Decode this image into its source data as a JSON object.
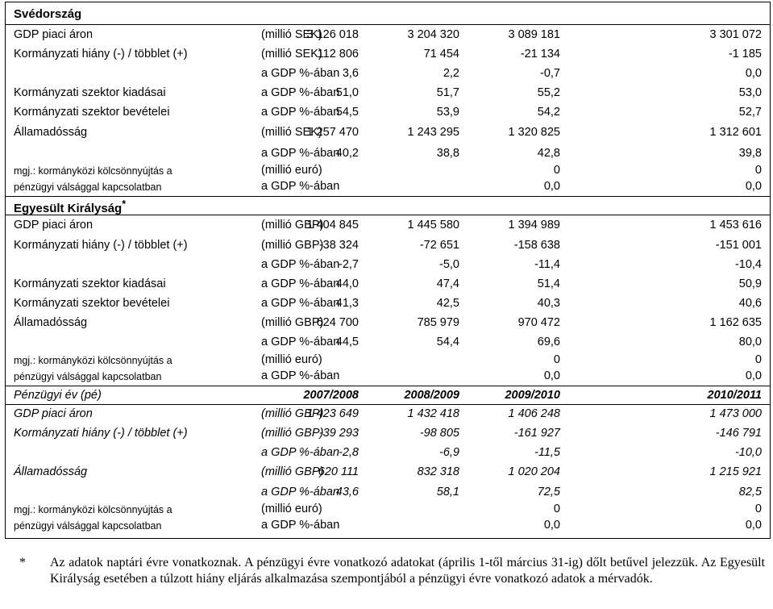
{
  "sweden": {
    "title": "Svédország",
    "gdp": {
      "label": "GDP piaci áron",
      "unit": "(millió SEK)",
      "values": [
        "3 126 018",
        "3 204 320",
        "3 089 181",
        "3 301 072"
      ]
    },
    "deficit": {
      "label": "Kormányzati hiány (-) / többlet (+)",
      "unit": "(millió SEK)",
      "values": [
        "112 806",
        "71 454",
        "-21 134",
        "-1 185"
      ]
    },
    "deficit_pct": {
      "unit": "a GDP %-ában",
      "values": [
        "3,6",
        "2,2",
        "-0,7",
        "0,0"
      ]
    },
    "expenditure": {
      "label": "Kormányzati szektor kiadásai",
      "unit": "a GDP %-ában",
      "values": [
        "51,0",
        "51,7",
        "55,2",
        "53,0"
      ]
    },
    "revenue": {
      "label": "Kormányzati szektor bevételei",
      "unit": "a GDP %-ában",
      "values": [
        "54,5",
        "53,9",
        "54,2",
        "52,7"
      ]
    },
    "debt": {
      "label": "Államadósság",
      "unit": "(millió SEK)",
      "values": [
        "1 257 470",
        "1 243 295",
        "1 320 825",
        "1 312 601"
      ]
    },
    "debt_pct": {
      "unit": "a GDP %-ában",
      "values": [
        "40,2",
        "38,8",
        "42,8",
        "39,8"
      ]
    },
    "note": {
      "line1": "mgj.: kormányközi kölcsönnyújtás a",
      "line2": "pénzügyi válsággal kapcsolatban",
      "unit1": "(millió euró)",
      "unit2": "a GDP %-ában",
      "v1": [
        "0",
        "0"
      ],
      "v2": [
        "0,0",
        "0,0"
      ]
    }
  },
  "uk": {
    "title": "Egyesült Királyság",
    "title_mark": "*",
    "gdp": {
      "label": "GDP piaci áron",
      "unit": "(millió GBP)",
      "values": [
        "1 404 845",
        "1 445 580",
        "1 394 989",
        "1 453 616"
      ]
    },
    "deficit": {
      "label": "Kormányzati hiány (-) / többlet (+)",
      "unit": "(millió GBP)",
      "values": [
        "-38 324",
        "-72 651",
        "-158 638",
        "-151 001"
      ]
    },
    "deficit_pct": {
      "unit": "a GDP %-ában",
      "values": [
        "-2,7",
        "-5,0",
        "-11,4",
        "-10,4"
      ]
    },
    "expenditure": {
      "label": "Kormányzati szektor kiadásai",
      "unit": "a GDP %-ában",
      "values": [
        "44,0",
        "47,4",
        "51,4",
        "50,9"
      ]
    },
    "revenue": {
      "label": "Kormányzati szektor bevételei",
      "unit": "a GDP %-ában",
      "values": [
        "41,3",
        "42,5",
        "40,3",
        "40,6"
      ]
    },
    "debt": {
      "label": "Államadósság",
      "unit": "(millió GBP)",
      "values": [
        "624 700",
        "785 979",
        "970 472",
        "1 162 635"
      ]
    },
    "debt_pct": {
      "unit": "a GDP %-ában",
      "values": [
        "44,5",
        "54,4",
        "69,6",
        "80,0"
      ]
    },
    "note": {
      "line1": "mgj.: kormányközi kölcsönnyújtás a",
      "line2": "pénzügyi válsággal kapcsolatban",
      "unit1": "(millió euró)",
      "unit2": "a GDP %-ában",
      "v1": [
        "0",
        "0"
      ],
      "v2": [
        "0,0",
        "0,0"
      ]
    }
  },
  "fiscal": {
    "header": {
      "label": "Pénzügyi év (pé)",
      "values": [
        "2007/2008",
        "2008/2009",
        "2009/2010",
        "2010/2011"
      ]
    },
    "gdp": {
      "label": "GDP piaci áron",
      "unit": "(millió GBP)",
      "values": [
        "1 423 649",
        "1 432 418",
        "1 406 248",
        "1 473 000"
      ]
    },
    "deficit": {
      "label": "Kormányzati hiány (-) / többlet (+)",
      "unit": "(millió GBP)",
      "values": [
        "-39 293",
        "-98 805",
        "-161 927",
        "-146 791"
      ]
    },
    "deficit_pct": {
      "unit": "a GDP %-ában",
      "values": [
        "-2,8",
        "-6,9",
        "-11,5",
        "-10,0"
      ]
    },
    "debt": {
      "label": "Államadósság",
      "unit": "(millió GBP)",
      "values": [
        "620 111",
        "832 318",
        "1 020 204",
        "1 215 921"
      ]
    },
    "debt_pct": {
      "unit": "a GDP %-ában",
      "values": [
        "43,6",
        "58,1",
        "72,5",
        "82,5"
      ]
    },
    "note": {
      "line1": "mgj.: kormányközi kölcsönnyújtás a",
      "line2": "pénzügyi válsággal kapcsolatban",
      "unit1": "(millió euró)",
      "unit2": "a GDP %-ában",
      "v1": [
        "0",
        "0"
      ],
      "v2": [
        "0,0",
        "0,0"
      ]
    }
  },
  "footnote": {
    "mark": "*",
    "text": "Az adatok naptári évre vonatkoznak. A pénzügyi évre vonatkozó adatokat (április 1-től március 31-ig) dőlt betűvel jelezzük. Az Egyesült Királyság esetében a túlzott hiány eljárás alkalmazása szempontjából a pénzügyi évre vonatkozó adatok a mérvadók."
  }
}
